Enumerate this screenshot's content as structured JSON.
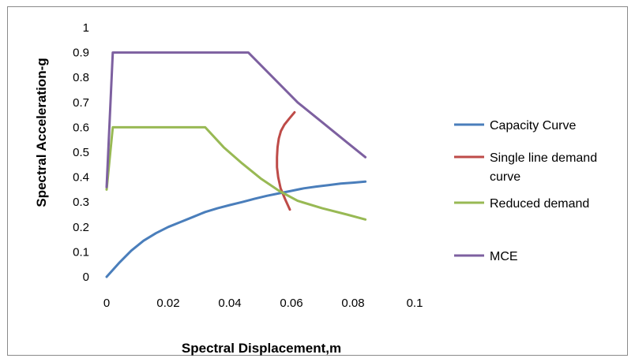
{
  "chart_data": {
    "type": "line",
    "title": "",
    "xlabel": "Spectral Displacement,m",
    "ylabel": "Spectral Acceleration-g",
    "xlim": [
      0,
      0.1
    ],
    "ylim": [
      0,
      1
    ],
    "x_ticks": [
      "0",
      "0.02",
      "0.04",
      "0.06",
      "0.08",
      "0.1"
    ],
    "y_ticks": [
      "0",
      "0.1",
      "0.2",
      "0.3",
      "0.4",
      "0.5",
      "0.6",
      "0.7",
      "0.8",
      "0.9",
      "1"
    ],
    "grid": false,
    "legend_position": "right",
    "series": [
      {
        "name": "Capacity Curve",
        "color": "#4a7ebb",
        "x": [
          0,
          0.004,
          0.008,
          0.012,
          0.016,
          0.02,
          0.024,
          0.028,
          0.032,
          0.036,
          0.04,
          0.044,
          0.048,
          0.052,
          0.056,
          0.06,
          0.064,
          0.068,
          0.072,
          0.076,
          0.08,
          0.084
        ],
        "y": [
          0,
          0.055,
          0.105,
          0.145,
          0.175,
          0.2,
          0.22,
          0.24,
          0.26,
          0.275,
          0.288,
          0.3,
          0.313,
          0.325,
          0.335,
          0.345,
          0.355,
          0.362,
          0.368,
          0.374,
          0.378,
          0.382
        ]
      },
      {
        "name": "Single line demand curve",
        "color": "#be4b48",
        "x": [
          0.0595,
          0.058,
          0.0565,
          0.0557,
          0.0553,
          0.0553,
          0.0555,
          0.0559,
          0.0566,
          0.0577,
          0.0593,
          0.061
        ],
        "y": [
          0.27,
          0.31,
          0.355,
          0.4,
          0.44,
          0.48,
          0.52,
          0.555,
          0.585,
          0.61,
          0.635,
          0.66
        ]
      },
      {
        "name": "Reduced demand",
        "color": "#98b954",
        "x": [
          0,
          0.002,
          0.032,
          0.038,
          0.044,
          0.05,
          0.056,
          0.062,
          0.07,
          0.078,
          0.084
        ],
        "y": [
          0.35,
          0.6,
          0.6,
          0.52,
          0.455,
          0.395,
          0.345,
          0.305,
          0.275,
          0.25,
          0.23
        ]
      },
      {
        "name": "MCE",
        "color": "#7d60a0",
        "x": [
          0,
          0.002,
          0.046,
          0.054,
          0.062,
          0.07,
          0.078,
          0.084
        ],
        "y": [
          0.36,
          0.9,
          0.9,
          0.8,
          0.7,
          0.62,
          0.54,
          0.48
        ]
      }
    ]
  },
  "legend": {
    "capacity": "Capacity Curve",
    "single_line_1": "Single line demand",
    "single_line_2": "curve",
    "reduced": "Reduced demand",
    "mce": "MCE"
  }
}
